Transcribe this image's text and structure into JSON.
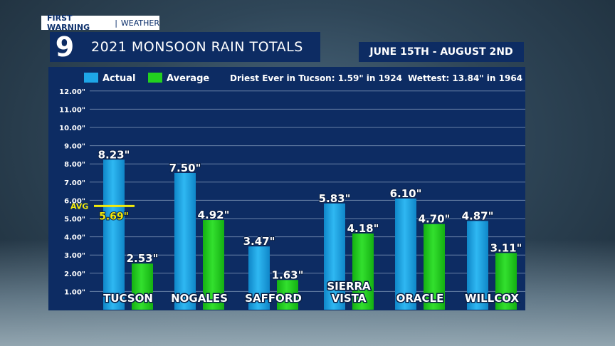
{
  "header": {
    "brand_primary": "FIRST WARNING",
    "brand_separator": "|",
    "brand_secondary": "WEATHER",
    "channel_logo": "9",
    "title": "2021 MONSOON RAIN TOTALS",
    "date_range": "JUNE 15TH - AUGUST 2ND"
  },
  "legend": {
    "items": [
      {
        "label": "Actual",
        "color": "#1ea7e8"
      },
      {
        "label": "Average",
        "color": "#22d11f"
      }
    ],
    "note_driest": "Driest Ever in Tucson: 1.59\" in 1924",
    "note_wettest": "Wettest: 13.84\" in 1964"
  },
  "colors": {
    "actual": "#1ea7e8",
    "average": "#22d11f",
    "avg_line": "#f2ea0a",
    "panel": "#0d2c63"
  },
  "chart_data": {
    "type": "bar",
    "categories": [
      "TUCSON",
      "NOGALES",
      "SAFFORD",
      "SIERRA VISTA",
      "ORACLE",
      "WILLCOX"
    ],
    "category_lines": [
      [
        "TUCSON"
      ],
      [
        "NOGALES"
      ],
      [
        "SAFFORD"
      ],
      [
        "SIERRA",
        "VISTA"
      ],
      [
        "ORACLE"
      ],
      [
        "WILLCOX"
      ]
    ],
    "series": [
      {
        "name": "Actual",
        "values": [
          8.23,
          7.5,
          3.47,
          5.83,
          6.1,
          4.87
        ],
        "labels": [
          "8.23\"",
          "7.50\"",
          "3.47\"",
          "5.83\"",
          "6.10\"",
          "4.87\""
        ]
      },
      {
        "name": "Average",
        "values": [
          2.53,
          4.92,
          1.63,
          4.18,
          4.7,
          3.11
        ],
        "labels": [
          "2.53\"",
          "4.92\"",
          "1.63\"",
          "4.18\"",
          "4.70\"",
          "3.11\""
        ]
      }
    ],
    "y_ticks": [
      "1.00\"",
      "2.00\"",
      "3.00\"",
      "4.00\"",
      "5.00\"",
      "6.00\"",
      "7.00\"",
      "8.00\"",
      "9.00\"",
      "10.00\"",
      "11.00\"",
      "12.00\""
    ],
    "ylim": [
      0,
      12
    ],
    "grid": true,
    "annotation": {
      "label": "AVG",
      "value": 5.69,
      "value_label": "5.69\"",
      "category": "TUCSON"
    }
  }
}
